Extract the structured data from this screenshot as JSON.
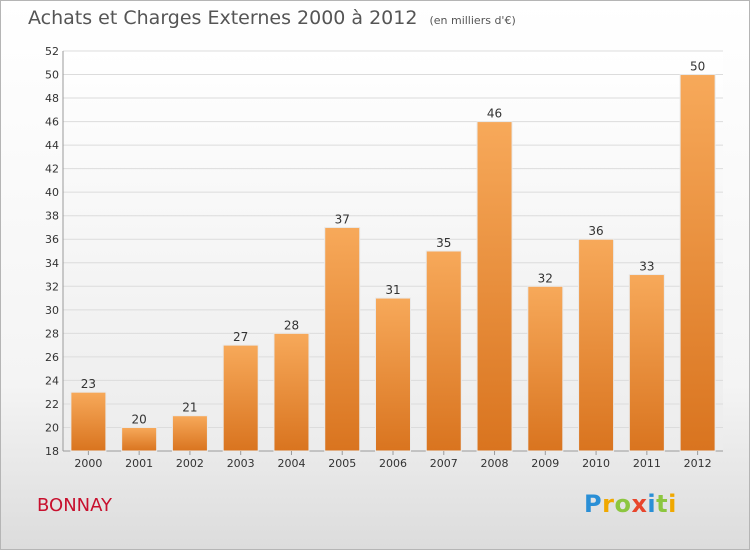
{
  "chart_data": {
    "type": "bar",
    "title": "Achats et Charges Externes 2000 à 2012",
    "subtitle": "(en milliers d'€)",
    "categories": [
      "2000",
      "2001",
      "2002",
      "2003",
      "2004",
      "2005",
      "2006",
      "2007",
      "2008",
      "2009",
      "2010",
      "2011",
      "2012"
    ],
    "values": [
      23,
      20,
      21,
      27,
      28,
      37,
      31,
      35,
      46,
      32,
      36,
      33,
      50
    ],
    "ylim": [
      18,
      52
    ],
    "ytick_step": 2,
    "grid": true,
    "bar_color": "#f0963e"
  },
  "place": "BONNAY",
  "logo": {
    "letters": [
      "P",
      "r",
      "o",
      "x",
      "i",
      "t",
      "i"
    ],
    "colors": [
      "#2a8fd6",
      "#f0a800",
      "#8cc63f",
      "#e8452c",
      "#2a8fd6",
      "#8cc63f",
      "#f0a800"
    ]
  }
}
